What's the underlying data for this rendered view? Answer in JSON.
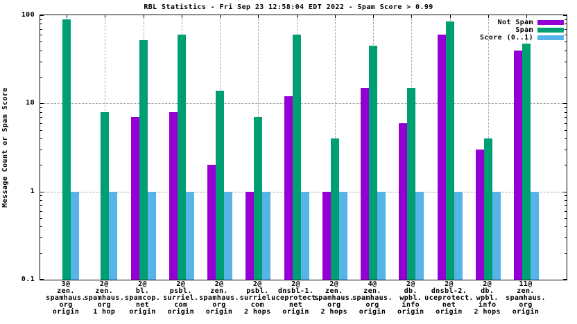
{
  "title": "RBL Statistics - Fri Sep 23 12:58:04 EDT 2022 - Spam Score > 0.99",
  "chart_data": {
    "type": "bar",
    "scale": "log",
    "title": "RBL Statistics - Fri Sep 23 12:58:04 EDT 2022 - Spam Score > 0.99",
    "xlabel": "",
    "ylabel": "Message Count or Spam Score",
    "ylim": [
      0.1,
      100
    ],
    "ytick_values": [
      100,
      10,
      1,
      0.1
    ],
    "ytick_labels": [
      "100",
      "10",
      "1",
      "0.1"
    ],
    "grid": true,
    "grid_color": "#a8a8a8",
    "legend_position": "top-right",
    "categories": [
      [
        "3@",
        "zen.",
        "spamhaus.",
        "org",
        "origin"
      ],
      [
        "2@",
        "zen.",
        "spamhaus.",
        "org",
        "1 hop"
      ],
      [
        "2@",
        "bl.",
        "spamcop.",
        "net",
        "origin"
      ],
      [
        "2@",
        "psbl.",
        "surriel.",
        "com",
        "origin"
      ],
      [
        "2@",
        "zen.",
        "spamhaus.",
        "org",
        "origin"
      ],
      [
        "2@",
        "psbl.",
        "surriel.",
        "com",
        "2 hops"
      ],
      [
        "2@",
        "dnsbl-1.",
        "uceprotect.",
        "net",
        "origin"
      ],
      [
        "2@",
        "zen.",
        "spamhaus.",
        "org",
        "2 hops"
      ],
      [
        "4@",
        "zen.",
        "spamhaus.",
        "org",
        "origin"
      ],
      [
        "2@",
        "db.",
        "wpbl.",
        "info",
        "origin"
      ],
      [
        "2@",
        "dnsbl-2.",
        "uceprotect.",
        "net",
        "origin"
      ],
      [
        "2@",
        "db.",
        "wpbl.",
        "info",
        "2 hops"
      ],
      [
        "11@",
        "zen.",
        "spamhaus.",
        "org",
        "origin"
      ]
    ],
    "series": [
      {
        "name": "Not Spam",
        "color": "#9400D3",
        "values": [
          null,
          null,
          7,
          8,
          2,
          1,
          12,
          1,
          15,
          6,
          60,
          3,
          40
        ]
      },
      {
        "name": "Spam",
        "color": "#009E73",
        "values": [
          90,
          8,
          52,
          60,
          14,
          7,
          60,
          4,
          45,
          15,
          85,
          4,
          48
        ]
      },
      {
        "name": "Score (0..1)",
        "color": "#56B4E9",
        "values": [
          1,
          1,
          1,
          1,
          1,
          1,
          1,
          1,
          1,
          1,
          1,
          1,
          1
        ]
      }
    ]
  }
}
